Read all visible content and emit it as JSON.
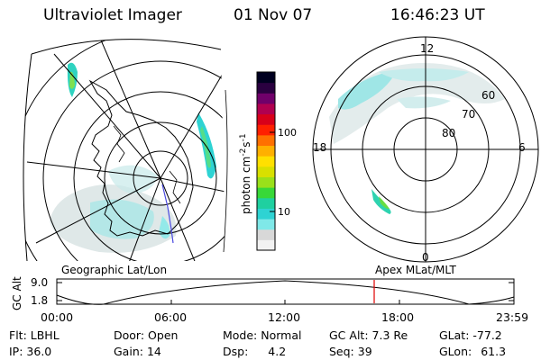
{
  "header": {
    "title": "Ultraviolet Imager",
    "date": "01 Nov 07",
    "time": "16:46:23 UT"
  },
  "colorbar": {
    "unit": "photon cm",
    "unit_exp1": "-2",
    "unit_s": "s",
    "unit_exp2": "-1",
    "ticks": [
      "100",
      "10"
    ],
    "ticks_values": [
      100,
      10
    ],
    "scale": "log",
    "colors": [
      "#f2f2f2",
      "#d8d8d8",
      "#7fe8e8",
      "#2ed3d3",
      "#1fd0a0",
      "#38d838",
      "#9ae01a",
      "#d8e000",
      "#ffe000",
      "#ffb000",
      "#ff7000",
      "#ff2000",
      "#d8001a",
      "#b00050",
      "#70006a",
      "#2a0040",
      "#000020"
    ]
  },
  "left_map": {
    "label": "Geographic Lat/Lon"
  },
  "right_map": {
    "label": "Apex MLat/MLT",
    "mlt_labels": {
      "top": "12",
      "left": "18",
      "right": "6",
      "bottom": "0"
    },
    "lat_labels": [
      "60",
      "70",
      "80"
    ]
  },
  "timeline": {
    "ylabel": "GC Alt",
    "yticks": [
      "9.0",
      "1.8"
    ],
    "xticks": [
      "00:00",
      "06:00",
      "12:00",
      "18:00",
      "23:59"
    ],
    "marker_time": "16:46",
    "marker_color": "#e00000"
  },
  "status": {
    "flt_label": "Flt:",
    "flt_value": "LBHL",
    "ip_label": "IP:",
    "ip_value": "36.0",
    "door_label": "Door:",
    "door_value": "Open",
    "gain_label": "Gain:",
    "gain_value": "14",
    "mode_label": "Mode:",
    "mode_value": "Normal",
    "dsp_label": "Dsp:",
    "dsp_value": "4.2",
    "gcalt_label": "GC Alt:",
    "gcalt_value": "7.3 Re",
    "seq_label": "Seq:",
    "seq_value": "39",
    "glat_label": "GLat:",
    "glat_value": "-77.2",
    "glon_label": "GLon:",
    "glon_value": "61.3"
  }
}
